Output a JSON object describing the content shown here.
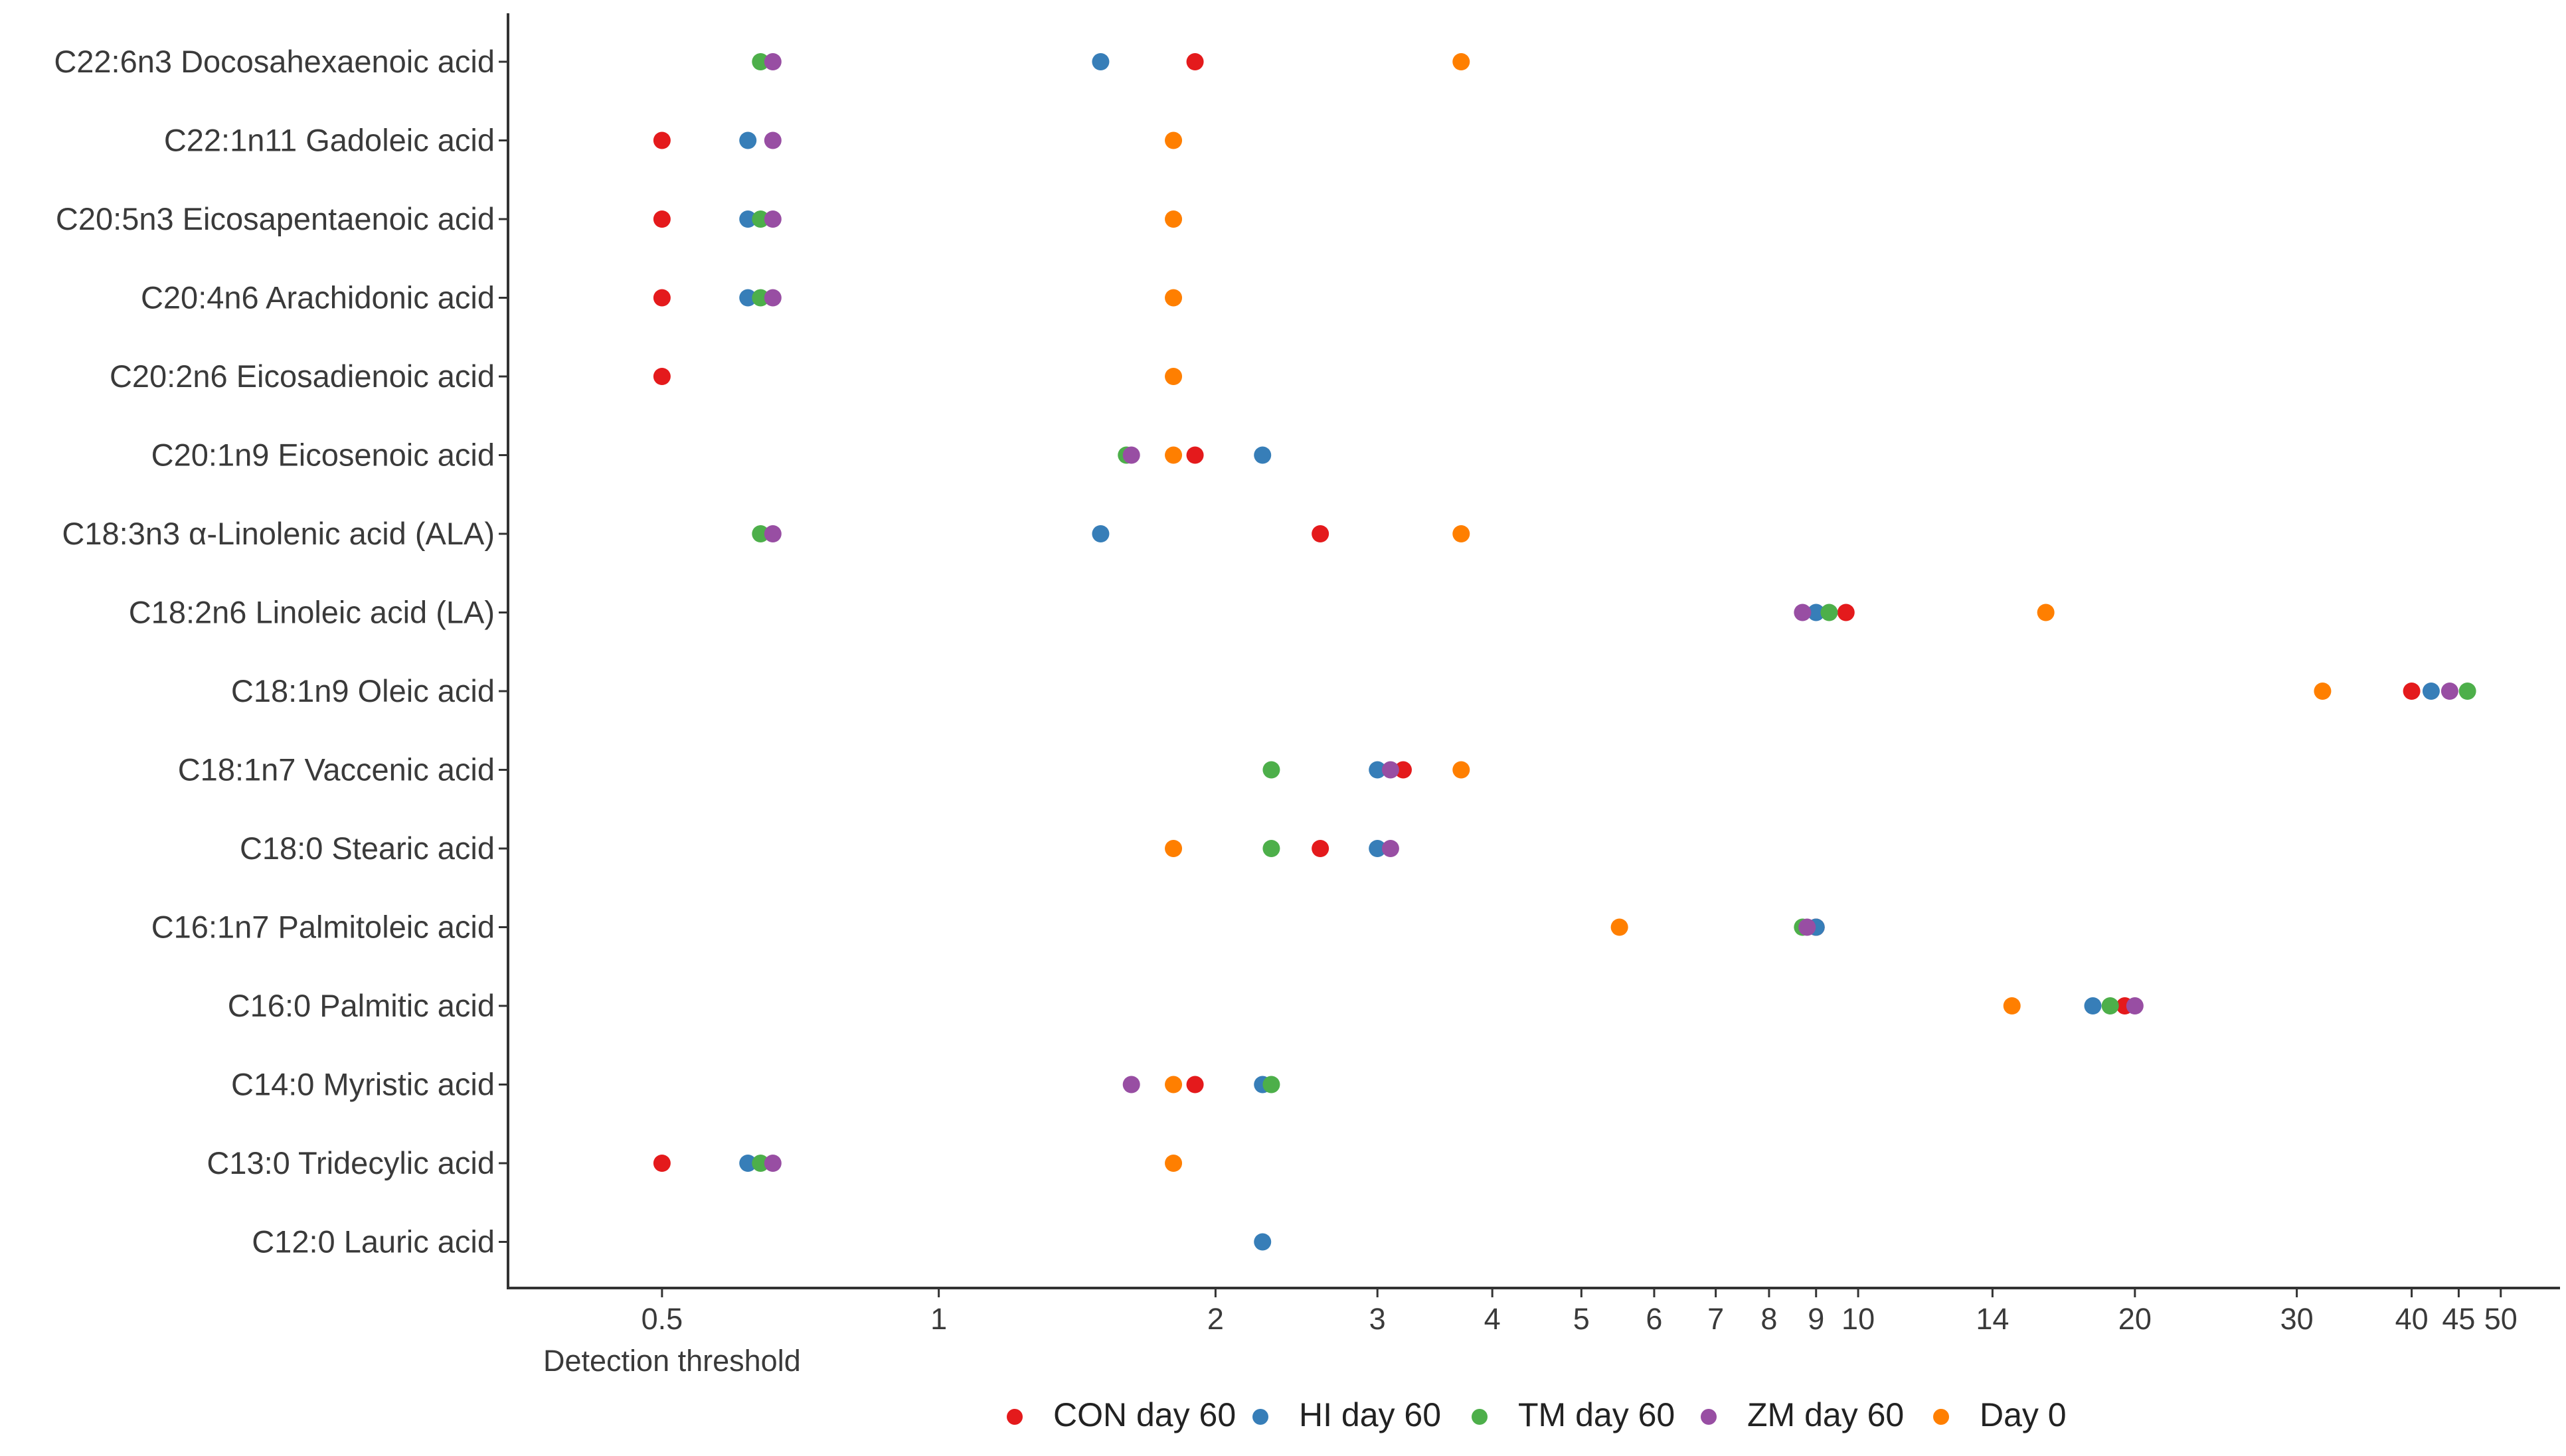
{
  "chart_data": {
    "type": "scatter",
    "title": "",
    "xlabel": "",
    "ylabel": "",
    "x_scale": "log",
    "xlim": [
      0.34,
      58
    ],
    "x_ticks": [
      {
        "value": 0.5,
        "label": "0.5"
      },
      {
        "value": 1,
        "label": "1"
      },
      {
        "value": 2,
        "label": "2"
      },
      {
        "value": 3,
        "label": "3"
      },
      {
        "value": 4,
        "label": "4"
      },
      {
        "value": 5,
        "label": "5"
      },
      {
        "value": 6,
        "label": "6"
      },
      {
        "value": 7,
        "label": "7"
      },
      {
        "value": 8,
        "label": "8"
      },
      {
        "value": 9,
        "label": "9"
      },
      {
        "value": 10,
        "label": "10"
      },
      {
        "value": 14,
        "label": "14"
      },
      {
        "value": 20,
        "label": "20"
      },
      {
        "value": 30,
        "label": "30"
      },
      {
        "value": 40,
        "label": "40"
      },
      {
        "value": 45,
        "label": "45"
      },
      {
        "value": 50,
        "label": "50"
      }
    ],
    "threshold_label": "Detection threshold",
    "grid": false,
    "legend_position": "bottom",
    "categories": [
      "C22:6n3 Docosahexaenoic acid",
      "C22:1n11 Gadoleic acid",
      "C20:5n3 Eicosapentaenoic acid",
      "C20:4n6 Arachidonic acid",
      "C20:2n6 Eicosadienoic acid",
      "C20:1n9 Eicosenoic acid",
      "C18:3n3 α-Linolenic acid (ALA)",
      "C18:2n6 Linoleic acid (LA)",
      "C18:1n9 Oleic acid",
      "C18:1n7 Vaccenic acid",
      "C18:0 Stearic acid",
      "C16:1n7 Palmitoleic acid",
      "C16:0 Palmitic acid",
      "C14:0 Myristic acid",
      "C13:0 Tridecylic acid",
      "C12:0 Lauric acid"
    ],
    "series": [
      {
        "name": "CON day 60",
        "color": "#e41a1c",
        "values": [
          1.9,
          0.5,
          0.5,
          0.5,
          0.5,
          1.9,
          2.6,
          9.7,
          40.0,
          3.2,
          2.6,
          9.0,
          19.5,
          1.9,
          0.5,
          null
        ]
      },
      {
        "name": "HI day 60",
        "color": "#377eb8",
        "values": [
          1.5,
          0.62,
          0.62,
          0.62,
          null,
          2.25,
          1.5,
          9.0,
          42.0,
          3.0,
          3.0,
          9.0,
          18.0,
          2.25,
          0.62,
          2.25
        ]
      },
      {
        "name": "TM day 60",
        "color": "#4daf4a",
        "values": [
          0.64,
          null,
          0.64,
          0.64,
          null,
          1.6,
          0.64,
          9.3,
          46.0,
          2.3,
          2.3,
          8.7,
          18.8,
          2.3,
          0.64,
          null
        ]
      },
      {
        "name": "ZM day 60",
        "color": "#984ea3",
        "values": [
          0.66,
          0.66,
          0.66,
          0.66,
          null,
          1.62,
          0.66,
          8.7,
          44.0,
          3.1,
          3.1,
          8.8,
          20.0,
          1.62,
          0.66,
          null
        ]
      },
      {
        "name": "Day 0",
        "color": "#ff7f00",
        "values": [
          3.7,
          1.8,
          1.8,
          1.8,
          1.8,
          1.8,
          3.7,
          16.0,
          32.0,
          3.7,
          1.8,
          5.5,
          14.7,
          1.8,
          1.8,
          null
        ]
      }
    ]
  }
}
